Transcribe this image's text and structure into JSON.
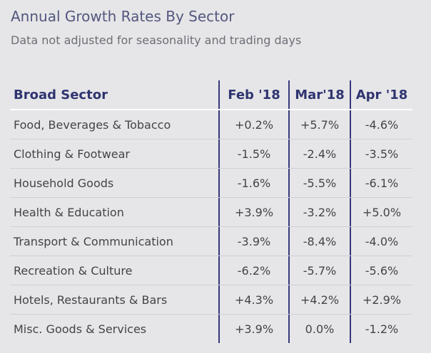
{
  "chart_data": {
    "type": "table",
    "title": "Annual Growth Rates By Sector",
    "subtitle": "Data not adjusted for seasonality and trading days",
    "columns": [
      "Broad Sector",
      "Feb '18",
      "Mar'18",
      "Apr '18"
    ],
    "rows": [
      {
        "sector": "Food, Beverages & Tobacco",
        "values": [
          "+0.2%",
          "+5.7%",
          "-4.6%"
        ]
      },
      {
        "sector": "Clothing & Footwear",
        "values": [
          "-1.5%",
          "-2.4%",
          "-3.5%"
        ]
      },
      {
        "sector": "Household Goods",
        "values": [
          "-1.6%",
          "-5.5%",
          "-6.1%"
        ]
      },
      {
        "sector": "Health & Education",
        "values": [
          "+3.9%",
          "-3.2%",
          "+5.0%"
        ]
      },
      {
        "sector": "Transport & Communication",
        "values": [
          "-3.9%",
          "-8.4%",
          "-4.0%"
        ]
      },
      {
        "sector": "Recreation & Culture",
        "values": [
          "-6.2%",
          "-5.7%",
          "-5.6%"
        ]
      },
      {
        "sector": "Hotels, Restaurants & Bars",
        "values": [
          "+4.3%",
          "+4.2%",
          "+2.9%"
        ]
      },
      {
        "sector": "Misc. Goods & Services",
        "values": [
          "+3.9%",
          "0.0%",
          "-1.2%"
        ]
      }
    ]
  },
  "colors": {
    "background": "#e6e6e8",
    "title": "#53577e",
    "header_text": "#2f3470",
    "divider": "#35397a"
  }
}
